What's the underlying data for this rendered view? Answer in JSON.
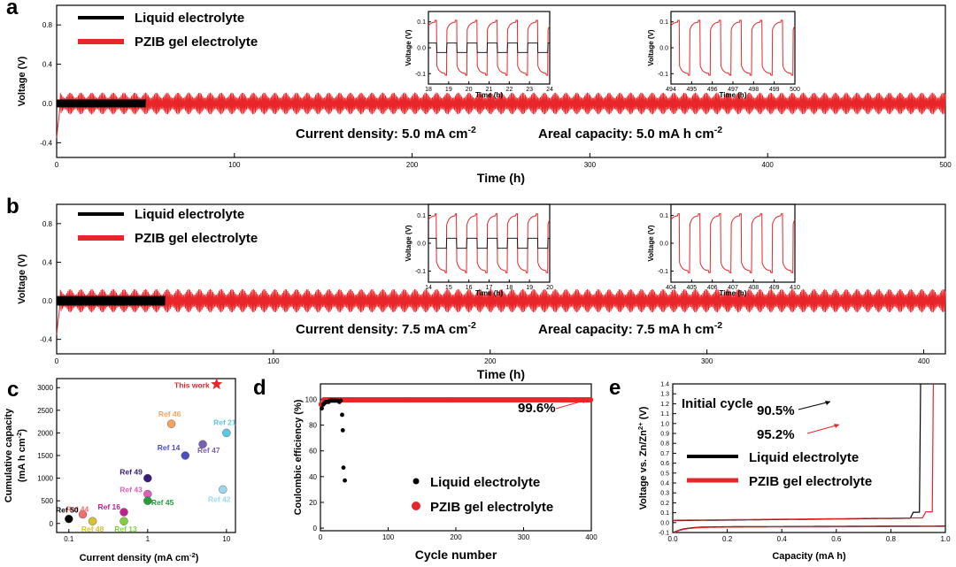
{
  "chart_data": [
    {
      "id": "a",
      "panel_label": "a",
      "type": "line",
      "xlabel": "Time (h)",
      "ylabel": "Voltage (V)",
      "xlim": [
        0,
        500
      ],
      "ylim": [
        -0.55,
        1.0
      ],
      "xticks": [
        "0",
        "100",
        "200",
        "300",
        "400",
        "500"
      ],
      "yticks": [
        "-0.4",
        "0.0",
        "0.4",
        "0.8"
      ],
      "series": [
        {
          "name": "Liquid electrolyte",
          "color": "#000000",
          "x_range": [
            0,
            50
          ],
          "amplitude": 0.04
        },
        {
          "name": "PZIB gel electrolyte",
          "color": "#e8262a",
          "x_range": [
            0,
            500
          ],
          "amplitude": 0.11
        }
      ],
      "annotations": [
        "Current density: 5.0 mA cm",
        "-2",
        "Areal capacity: 5.0 mA h cm",
        "-2"
      ],
      "insets": [
        {
          "xlabel": "Time (h)",
          "ylabel": "Voltage (V)",
          "xticks": [
            "18",
            "19",
            "20",
            "21",
            "22",
            "23",
            "24"
          ],
          "yticks": [
            "0.1",
            "0.0",
            "-0.1"
          ],
          "xlim": [
            18,
            24
          ],
          "ylim": [
            -0.14,
            0.14
          ],
          "has_liquid": true
        },
        {
          "xlabel": "Time (h)",
          "ylabel": "Voltage (V)",
          "xticks": [
            "494",
            "495",
            "496",
            "497",
            "498",
            "499",
            "500"
          ],
          "yticks": [
            "0.1",
            "0.0",
            "-0.1"
          ],
          "xlim": [
            494,
            500
          ],
          "ylim": [
            -0.14,
            0.14
          ],
          "has_liquid": false
        }
      ]
    },
    {
      "id": "b",
      "panel_label": "b",
      "type": "line",
      "xlabel": "Time (h)",
      "ylabel": "Voltage (V)",
      "xlim": [
        0,
        410
      ],
      "ylim": [
        -0.55,
        1.0
      ],
      "xticks": [
        "0",
        "100",
        "200",
        "300",
        "400"
      ],
      "yticks": [
        "-0.4",
        "0.0",
        "0.4",
        "0.8"
      ],
      "series": [
        {
          "name": "Liquid electrolyte",
          "color": "#000000",
          "x_range": [
            0,
            50
          ],
          "amplitude": 0.05
        },
        {
          "name": "PZIB gel electrolyte",
          "color": "#e8262a",
          "x_range": [
            0,
            410
          ],
          "amplitude": 0.12
        }
      ],
      "annotations": [
        "Current density: 7.5 mA cm",
        "-2",
        "Areal capacity: 7.5 mA h cm",
        "-2"
      ],
      "insets": [
        {
          "xlabel": "Time (h)",
          "ylabel": "Voltage (V)",
          "xticks": [
            "14",
            "15",
            "16",
            "17",
            "18",
            "19",
            "20"
          ],
          "yticks": [
            "0.1",
            "0.0",
            "-0.1"
          ],
          "xlim": [
            14,
            20
          ],
          "ylim": [
            -0.14,
            0.14
          ],
          "has_liquid": true
        },
        {
          "xlabel": "Time (h)",
          "ylabel": "Voltage (V)",
          "xticks": [
            "404",
            "405",
            "406",
            "407",
            "408",
            "409",
            "410"
          ],
          "yticks": [
            "0.1",
            "0.0",
            "-0.1"
          ],
          "xlim": [
            404,
            410
          ],
          "ylim": [
            -0.14,
            0.14
          ],
          "has_liquid": false
        }
      ]
    },
    {
      "id": "c",
      "panel_label": "c",
      "type": "scatter",
      "xlabel": "Current density (mA cm",
      "xlabel_sup": "-2",
      "xlabel_end": ")",
      "ylabel": "Cumulative capacity",
      "ylabel2": "(mA h cm",
      "ylabel2_sup": "-2",
      "ylabel2_end": ")",
      "x_scale": "log",
      "xlim": [
        0.07,
        13
      ],
      "ylim": [
        -200,
        3200
      ],
      "xticks": [
        {
          "v": 0.1,
          "label": "0.1"
        },
        {
          "v": 1,
          "label": "1"
        },
        {
          "v": 10,
          "label": "10"
        }
      ],
      "yticks": [
        "0",
        "500",
        "1000",
        "1500",
        "2000",
        "2500",
        "3000"
      ],
      "points": [
        {
          "label": "This work",
          "x": 7.5,
          "y": 3075,
          "color": "#e8262a",
          "marker": "star"
        },
        {
          "label": "Ref 46",
          "x": 2.0,
          "y": 2200,
          "color": "#f4a460"
        },
        {
          "label": "Ref 21",
          "x": 10,
          "y": 2000,
          "color": "#5bc8e8"
        },
        {
          "label": "Ref 14",
          "x": 3.0,
          "y": 1500,
          "color": "#4b4ec0"
        },
        {
          "label": "Ref 47",
          "x": 5.0,
          "y": 1750,
          "color": "#7b5fb0"
        },
        {
          "label": "Ref 49",
          "x": 1.0,
          "y": 1000,
          "color": "#3a1a7a"
        },
        {
          "label": "Ref 43",
          "x": 1.0,
          "y": 650,
          "color": "#e060b8"
        },
        {
          "label": "Ref 42",
          "x": 9.0,
          "y": 750,
          "color": "#9ad8ee"
        },
        {
          "label": "Ref 45",
          "x": 1.0,
          "y": 500,
          "color": "#23a03a"
        },
        {
          "label": "Ref 16",
          "x": 0.5,
          "y": 250,
          "color": "#c02090"
        },
        {
          "label": "Ref 44",
          "x": 0.15,
          "y": 200,
          "color": "#f07070"
        },
        {
          "label": "Ref 50",
          "x": 0.1,
          "y": 100,
          "color": "#000000"
        },
        {
          "label": "Ref 48",
          "x": 0.2,
          "y": 50,
          "color": "#d8c030"
        },
        {
          "label": "Ref 13",
          "x": 0.5,
          "y": 50,
          "color": "#7fd040"
        }
      ]
    },
    {
      "id": "d",
      "panel_label": "d",
      "type": "scatter",
      "xlabel": "Cycle number",
      "ylabel": "Coulombic efficiency (%)",
      "xlim": [
        0,
        400
      ],
      "ylim": [
        -2,
        112
      ],
      "xticks": [
        "0",
        "100",
        "200",
        "300",
        "400"
      ],
      "yticks": [
        "0",
        "20",
        "40",
        "60",
        "80",
        "100"
      ],
      "series": [
        {
          "name": "Liquid electrolyte",
          "color": "#000000",
          "points": [
            [
              2,
              93
            ],
            [
              4,
              96
            ],
            [
              6,
              97
            ],
            [
              8,
              98
            ],
            [
              10,
              98
            ],
            [
              12,
              98
            ],
            [
              14,
              99
            ],
            [
              16,
              99
            ],
            [
              18,
              99
            ],
            [
              20,
              99
            ],
            [
              22,
              99
            ],
            [
              24,
              99
            ],
            [
              26,
              99
            ],
            [
              28,
              98
            ],
            [
              30,
              99
            ],
            [
              32,
              88
            ],
            [
              33,
              76
            ],
            [
              34,
              47
            ],
            [
              36,
              37
            ]
          ]
        },
        {
          "name": "PZIB gel electrolyte",
          "color": "#e8262a",
          "value": 99.6,
          "x_range": [
            1,
            400
          ]
        }
      ],
      "annotations": [
        "99.6%"
      ]
    },
    {
      "id": "e",
      "panel_label": "e",
      "type": "line",
      "xlabel": "Capacity (mA h)",
      "ylabel": "Voltage vs. Zn/Zn",
      "ylabel_sup": "2+",
      "ylabel_end": " (V)",
      "xlim": [
        0.0,
        1.0
      ],
      "ylim": [
        -0.1,
        1.4
      ],
      "xticks": [
        "0.0",
        "0.2",
        "0.4",
        "0.6",
        "0.8",
        "1.0"
      ],
      "yticks": [
        "-0.1",
        "0.0",
        "0.1",
        "0.2",
        "0.3",
        "0.4",
        "0.5",
        "0.6",
        "0.7",
        "0.8",
        "0.9",
        "1.0",
        "1.1",
        "1.2",
        "1.3",
        "1.4"
      ],
      "series": [
        {
          "name": "Liquid electrolyte",
          "color": "#000000",
          "efficiency": "90.5%",
          "charge_end": 0.905
        },
        {
          "name": "PZIB gel electrolyte",
          "color": "#e8262a",
          "efficiency": "95.2%",
          "charge_end": 0.952
        }
      ],
      "annotations": [
        "Initial cycle",
        "90.5%",
        "95.2%"
      ]
    }
  ]
}
